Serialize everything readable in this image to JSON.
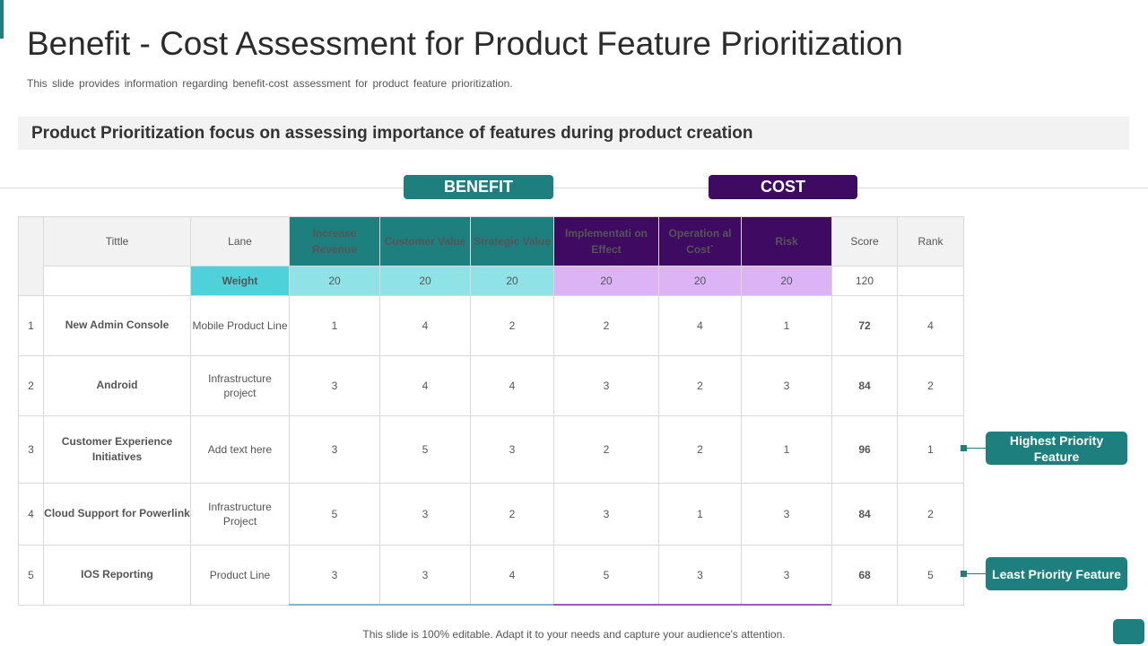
{
  "title": "Benefit - Cost Assessment for Product Feature Prioritization",
  "subtitle": "This slide provides information regarding benefit-cost assessment for product feature prioritization.",
  "banner": "Product Prioritization focus on assessing importance of features during product creation",
  "groups": {
    "benefit": "BENEFIT",
    "cost": "COST"
  },
  "colors": {
    "teal": "#1e7f7f",
    "purple": "#3f0a62",
    "weight_label": "#4fd1d9",
    "weight_teal": "#8fe3e6",
    "weight_purple": "#dcb3f5"
  },
  "table": {
    "headers": {
      "title": "Tittle",
      "lane": "Lane",
      "increase_revenue": "Increase Revenue",
      "customer_value": "Customer Value",
      "strategic_value": "Strategic Value",
      "implementation_effect": "Implementati on Effect",
      "operational_cost": "Operation al Cost`",
      "risk": "Risk",
      "score": "Score",
      "rank": "Rank"
    },
    "weights": {
      "label": "Weight",
      "increase_revenue": "20",
      "customer_value": "20",
      "strategic_value": "20",
      "implementation_effect": "20",
      "operational_cost": "20",
      "risk": "20",
      "score": "120"
    },
    "rows": [
      {
        "index": "1",
        "title": "New Admin Console",
        "lane": "Mobile Product Line",
        "increase_revenue": "1",
        "customer_value": "4",
        "strategic_value": "2",
        "implementation_effect": "2",
        "operational_cost": "4",
        "risk": "1",
        "score": "72",
        "rank": "4"
      },
      {
        "index": "2",
        "title": "Android",
        "lane": "Infrastructure project",
        "increase_revenue": "3",
        "customer_value": "4",
        "strategic_value": "4",
        "implementation_effect": "3",
        "operational_cost": "2",
        "risk": "3",
        "score": "84",
        "rank": "2"
      },
      {
        "index": "3",
        "title": "Customer Experience Initiatives",
        "lane": "Add text here",
        "increase_revenue": "3",
        "customer_value": "5",
        "strategic_value": "3",
        "implementation_effect": "2",
        "operational_cost": "2",
        "risk": "1",
        "score": "96",
        "rank": "1"
      },
      {
        "index": "4",
        "title": "Cloud Support for Powerlink",
        "lane": "Infrastructure Project",
        "increase_revenue": "5",
        "customer_value": "3",
        "strategic_value": "2",
        "implementation_effect": "3",
        "operational_cost": "1",
        "risk": "3",
        "score": "84",
        "rank": "2"
      },
      {
        "index": "5",
        "title": "IOS Reporting",
        "lane": "Product Line",
        "increase_revenue": "3",
        "customer_value": "3",
        "strategic_value": "4",
        "implementation_effect": "5",
        "operational_cost": "3",
        "risk": "3",
        "score": "68",
        "rank": "5"
      }
    ]
  },
  "callouts": {
    "highest": "Highest Priority Feature",
    "least": "Least Priority Feature"
  },
  "footer": "This slide is 100% editable. Adapt it to your needs and capture your audience's attention."
}
